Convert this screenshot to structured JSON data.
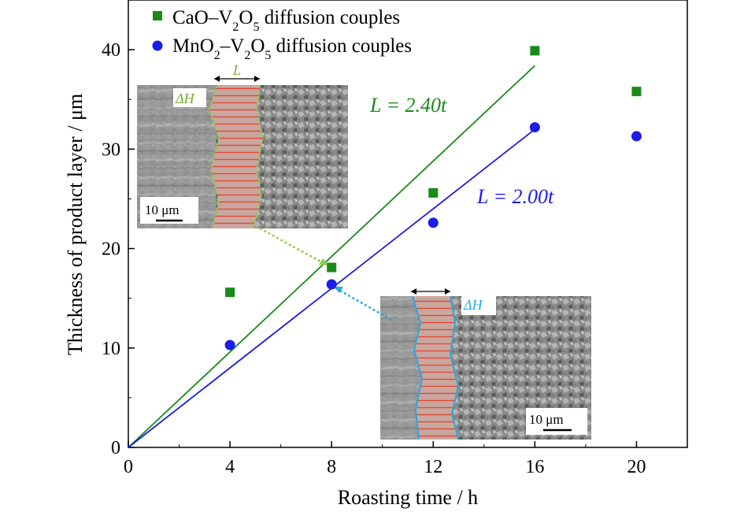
{
  "chart_data": {
    "type": "scatter",
    "xlabel": "Roasting time / h",
    "ylabel": "Thickness of product layer / μm",
    "xlim": [
      0,
      22
    ],
    "ylim": [
      0,
      45
    ],
    "x_ticks": [
      "0",
      "4",
      "8",
      "12",
      "16",
      "20"
    ],
    "y_ticks": [
      "0",
      "10",
      "20",
      "30",
      "40"
    ],
    "legend_position": "top-left",
    "series": [
      {
        "name": "CaO–V₂O₅ diffusion couples",
        "name_base": "CaO–V",
        "name_mid": "O",
        "name_tail": " diffusion couples",
        "sub1": "2",
        "sub2": "5",
        "marker": "square",
        "color": "#1a8a1a",
        "x": [
          4,
          8,
          12,
          16,
          20
        ],
        "y": [
          15.6,
          18.1,
          25.6,
          39.9,
          35.8
        ]
      },
      {
        "name": "MnO₂–V₂O₅ diffusion couples",
        "name_base": "MnO",
        "name_mid": "–V",
        "name_mid2": "O",
        "name_tail": " diffusion couples",
        "sub1": "2",
        "sub2": "2",
        "sub3": "5",
        "marker": "circle",
        "color": "#1c1ce8",
        "x": [
          4,
          8,
          12,
          16,
          20
        ],
        "y": [
          10.3,
          16.4,
          22.6,
          32.2,
          31.3
        ]
      }
    ],
    "fits": [
      {
        "label_prefix": "L = 2.40",
        "label_var": "t",
        "slope": 2.4,
        "x_range": [
          0,
          16
        ],
        "color": "#1a8a1a"
      },
      {
        "label_prefix": "L = 2.00",
        "label_var": "t",
        "slope": 2.0,
        "x_range": [
          0,
          16
        ],
        "color": "#1c1ce8"
      }
    ],
    "insets": [
      {
        "scale_bar": "10 μm",
        "top_mark": "L",
        "side_mark": "ΔH",
        "boundary_color": "#8ed04a",
        "points_to": [
          8,
          18.1
        ]
      },
      {
        "scale_bar": "10 μm",
        "side_mark": "ΔH",
        "boundary_color": "#2aa8e0",
        "points_to": [
          8,
          16.4
        ]
      }
    ]
  }
}
